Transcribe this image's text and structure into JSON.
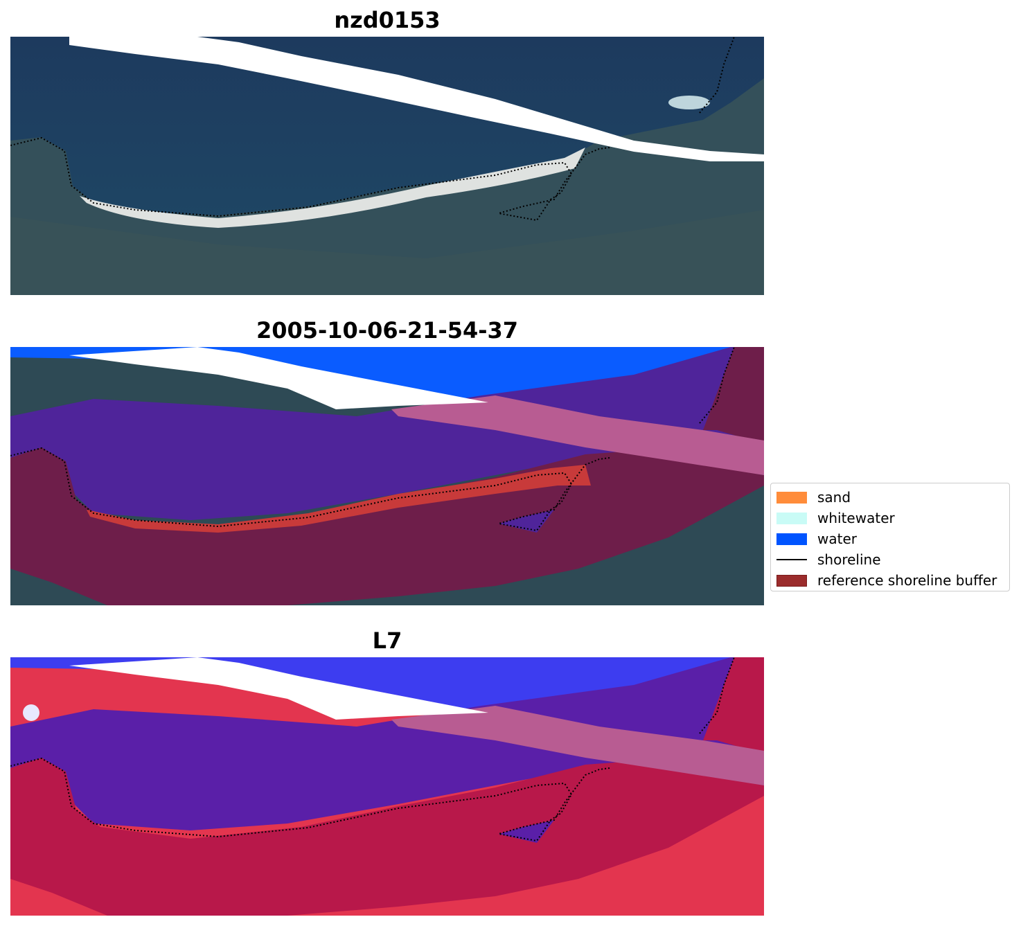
{
  "panels": [
    {
      "title": "nzd0153",
      "kind": "rgb"
    },
    {
      "title": "2005-10-06-21-54-37",
      "kind": "classified"
    },
    {
      "title": "L7",
      "kind": "index"
    }
  ],
  "legend": {
    "items": [
      {
        "label": "sand",
        "color": "#ff8c3a",
        "type": "patch"
      },
      {
        "label": "whitewater",
        "color": "#c9fbf6",
        "type": "patch"
      },
      {
        "label": "water",
        "color": "#0054ff",
        "type": "patch"
      },
      {
        "label": "shoreline",
        "color": "#000000",
        "type": "line"
      },
      {
        "label": "reference shoreline buffer",
        "color": "#9b2c2c",
        "edge": "#7a1b1b",
        "type": "patch"
      }
    ]
  },
  "colors": {
    "sea_dark": "#1f3a5f",
    "land_dark": "#2f4a4f",
    "beach_sand": "#d9dcd9",
    "water_class": "#0a5cff",
    "buffer_overlay": "#7a1e4a",
    "sand_class": "#c83a3a",
    "index_blue": "#3d3df0",
    "index_red": "#e62a4a"
  }
}
